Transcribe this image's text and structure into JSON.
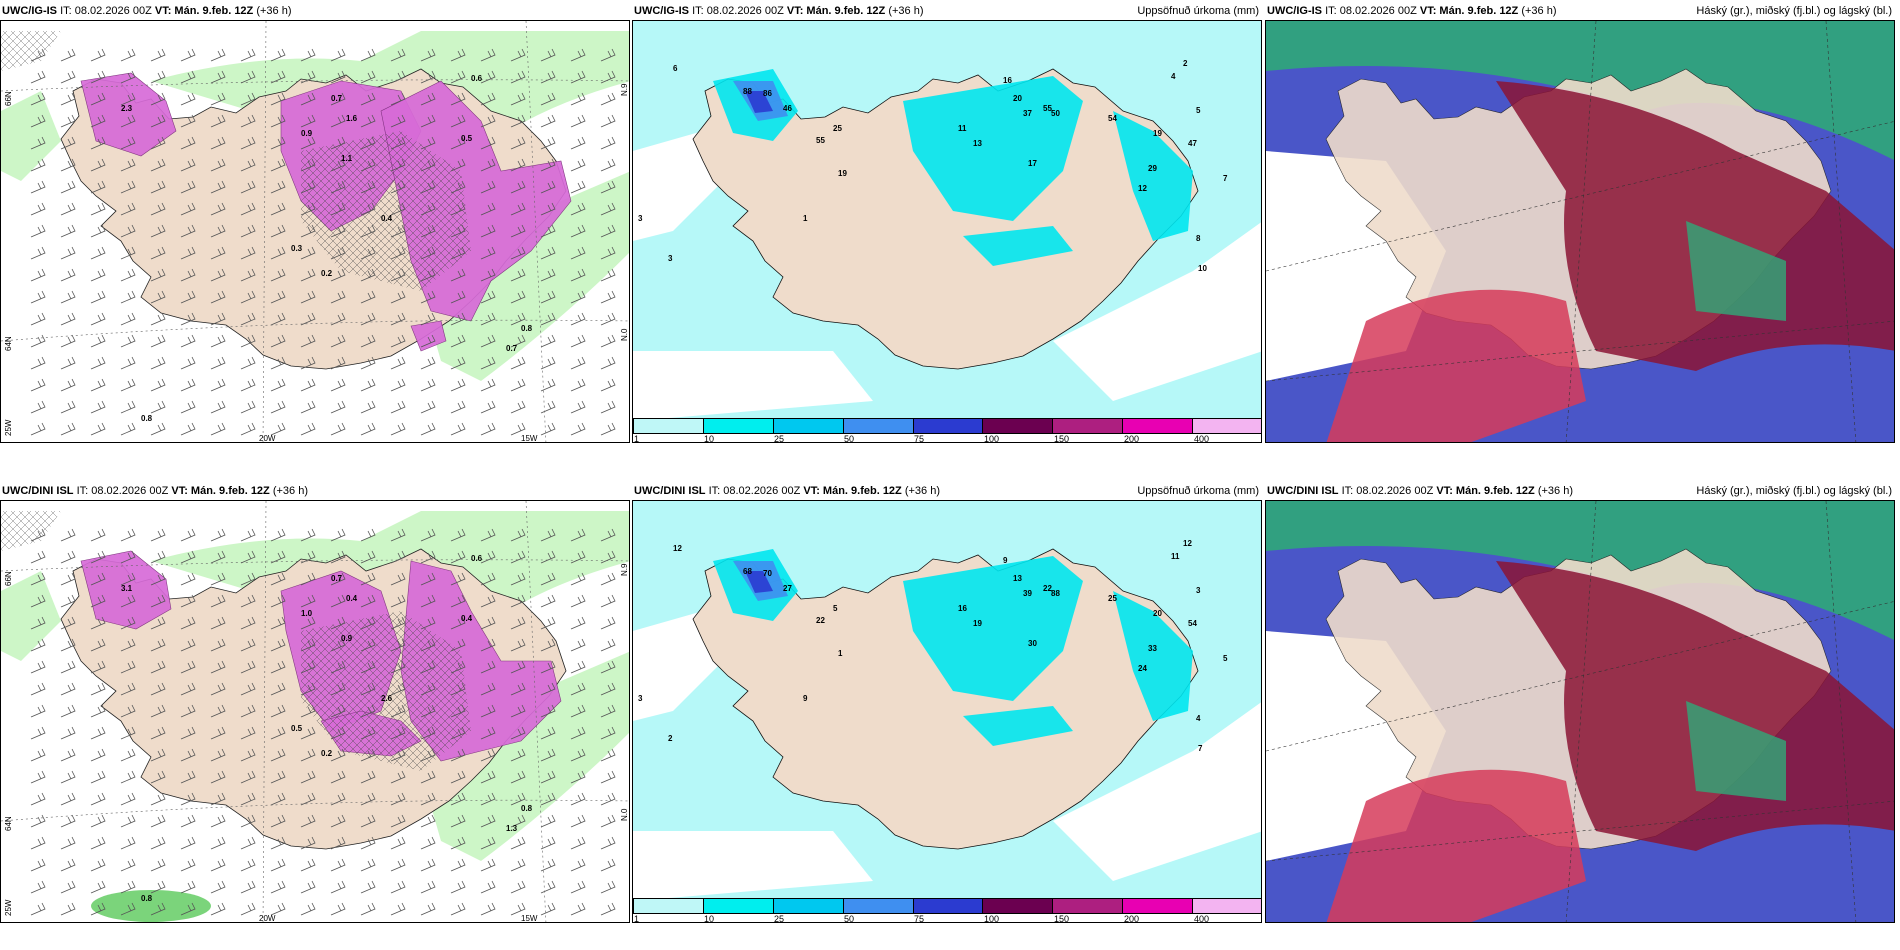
{
  "colors": {
    "land": "#efdccb",
    "sea_bg": "#ffffff",
    "precip_light": "#b6f8f8",
    "precip_mid": "#00e5ee",
    "snow_green": "#c8f5c1",
    "snow_pink": "#d76bd8",
    "cloud_high": "#2fa978",
    "cloud_mid": "#d63b5a",
    "cloud_low": "#4a56c8",
    "cloud_dark": "#8b1435"
  },
  "rows": [
    {
      "model": "UWC/IG-IS",
      "init": "IT: 08.02.2026 00Z",
      "valid": "VT: Mán. 9.feb. 12Z",
      "lead": "(+36 h)",
      "snow_values": [
        "0.7",
        "0.6",
        "0.5",
        "0.8",
        "0.7",
        "0.9",
        "1.1",
        "0.3",
        "0.2",
        "0.4",
        "2.3",
        "1.6",
        "0.8"
      ],
      "precip_values": [
        "6",
        "16",
        "2",
        "4",
        "5",
        "7",
        "8",
        "10",
        "12",
        "29",
        "19",
        "47",
        "54",
        "55",
        "20",
        "11",
        "13",
        "17",
        "37",
        "50",
        "86",
        "88",
        "46",
        "55",
        "25",
        "19",
        "3",
        "1",
        "3"
      ]
    },
    {
      "model": "UWC/DINI ISL",
      "init": "IT: 08.02.2026 00Z",
      "valid": "VT: Mán. 9.feb. 12Z",
      "lead": "(+36 h)",
      "snow_values": [
        "0.7",
        "0.6",
        "0.4",
        "0.8",
        "1.3",
        "1.0",
        "0.9",
        "0.5",
        "0.2",
        "2.6",
        "3.1",
        "0.4",
        "0.8"
      ],
      "precip_values": [
        "12",
        "9",
        "12",
        "11",
        "3",
        "5",
        "4",
        "7",
        "24",
        "33",
        "20",
        "54",
        "25",
        "22",
        "13",
        "16",
        "19",
        "30",
        "39",
        "88",
        "70",
        "68",
        "27",
        "22",
        "5",
        "1",
        "3",
        "9",
        "2"
      ]
    }
  ],
  "snow_panel": {
    "lat_labels": [
      "66N",
      "64N",
      "25W"
    ],
    "lon_labels": [
      "20W",
      "15W"
    ],
    "lat_right": [
      "N.9",
      "N.0"
    ]
  },
  "precip_panel": {
    "title": "Uppsöfnuð úrkoma (mm)",
    "colorbar": {
      "values": [
        "1",
        "10",
        "25",
        "50",
        "75",
        "100",
        "150",
        "200",
        "400"
      ],
      "colors": [
        "#bff7f7",
        "#00eeee",
        "#00c8ef",
        "#3f8ff0",
        "#2b3bd0",
        "#6b0050",
        "#ad1f80",
        "#e800b2",
        "#f3b4f1"
      ]
    }
  },
  "cloud_panel": {
    "title": "Háský (gr.), miðský (fj.bl.) og lágský (bl.)"
  }
}
